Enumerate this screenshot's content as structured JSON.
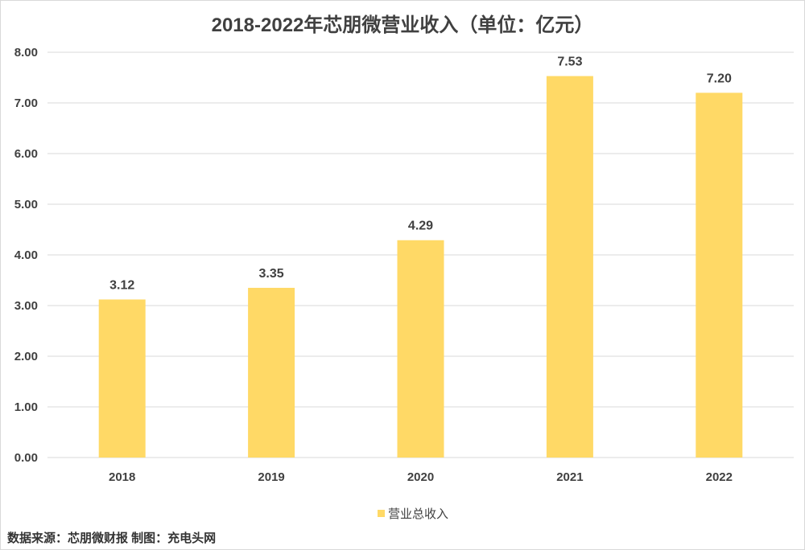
{
  "chart_data": {
    "type": "bar",
    "title": "2018-2022年芯朋微营业收入（单位：亿元）",
    "categories": [
      "2018",
      "2019",
      "2020",
      "2021",
      "2022"
    ],
    "series": [
      {
        "name": "营业总收入",
        "values": [
          3.12,
          3.35,
          4.29,
          7.53,
          7.2
        ]
      }
    ],
    "data_labels": [
      "3.12",
      "3.35",
      "4.29",
      "7.53",
      "7.20"
    ],
    "y_ticks": [
      "0.00",
      "1.00",
      "2.00",
      "3.00",
      "4.00",
      "5.00",
      "6.00",
      "7.00",
      "8.00"
    ],
    "ylim": [
      0,
      8
    ],
    "xlabel": "",
    "ylabel": "",
    "grid": true,
    "legend_position": "bottom",
    "colors": {
      "bar": "#FFD966",
      "grid": "#d9d9d9",
      "text": "#404040"
    }
  },
  "footer": {
    "source": "数据来源：芯朋微财报  制图：充电头网"
  }
}
